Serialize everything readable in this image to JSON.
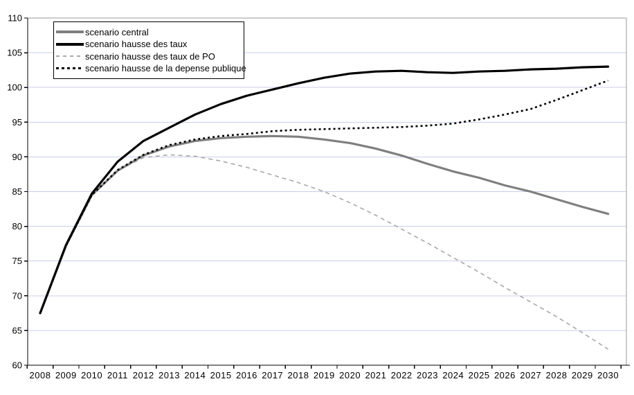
{
  "chart_data": {
    "type": "line",
    "title": "",
    "xlabel": "",
    "ylabel": "",
    "grid": true,
    "legend_position": "top-left",
    "categories": [
      "2008",
      "2009",
      "2010",
      "2011",
      "2012",
      "2013",
      "2014",
      "2015",
      "2016",
      "2017",
      "2018",
      "2019",
      "2020",
      "2021",
      "2022",
      "2023",
      "2024",
      "2025",
      "2026",
      "2027",
      "2028",
      "2029",
      "2030"
    ],
    "y_axis": {
      "min": 60,
      "max": 110,
      "step": 5,
      "tick_labels": [
        "60",
        "65",
        "70",
        "75",
        "80",
        "85",
        "90",
        "95",
        "100",
        "105",
        "110"
      ]
    },
    "series": [
      {
        "name": "scenario central",
        "color": "#7f7f7f",
        "line_style": "solid",
        "line_width": 3.2,
        "values": [
          67.5,
          77.2,
          84.5,
          88.0,
          90.2,
          91.5,
          92.3,
          92.7,
          92.9,
          93.0,
          92.9,
          92.5,
          92.0,
          91.2,
          90.2,
          89.0,
          87.9,
          87.0,
          85.9,
          85.0,
          83.9,
          82.8,
          81.8
        ]
      },
      {
        "name": "scenario hausse des taux",
        "color": "#000000",
        "line_style": "solid",
        "line_width": 3.2,
        "values": [
          67.5,
          77.3,
          84.7,
          89.3,
          92.3,
          94.2,
          96.1,
          97.6,
          98.8,
          99.7,
          100.6,
          101.4,
          102.0,
          102.3,
          102.4,
          102.2,
          102.1,
          102.3,
          102.4,
          102.6,
          102.7,
          102.9,
          103.0
        ]
      },
      {
        "name": "scenario hausse des taux de PO",
        "color": "#a8a8a8",
        "line_style": "dashed",
        "line_width": 1.6,
        "values": [
          67.5,
          77.2,
          84.5,
          88.0,
          89.9,
          90.3,
          90.1,
          89.4,
          88.5,
          87.4,
          86.3,
          85.0,
          83.4,
          81.6,
          79.6,
          77.6,
          75.5,
          73.4,
          71.2,
          69.1,
          67.0,
          64.7,
          62.3
        ]
      },
      {
        "name": "scenario hausse de la depense publique",
        "color": "#000000",
        "line_style": "dotted",
        "line_width": 2.6,
        "values": [
          67.5,
          77.2,
          84.5,
          88.1,
          90.3,
          91.7,
          92.5,
          93.0,
          93.3,
          93.7,
          93.9,
          94.0,
          94.1,
          94.2,
          94.3,
          94.5,
          94.8,
          95.4,
          96.1,
          96.9,
          98.2,
          99.6,
          101.0
        ]
      }
    ]
  },
  "colors": {
    "background": "#ffffff",
    "gridline": "#c9cde9",
    "frame": "#999999",
    "axis": "#000000",
    "tick_text": "#000000"
  }
}
